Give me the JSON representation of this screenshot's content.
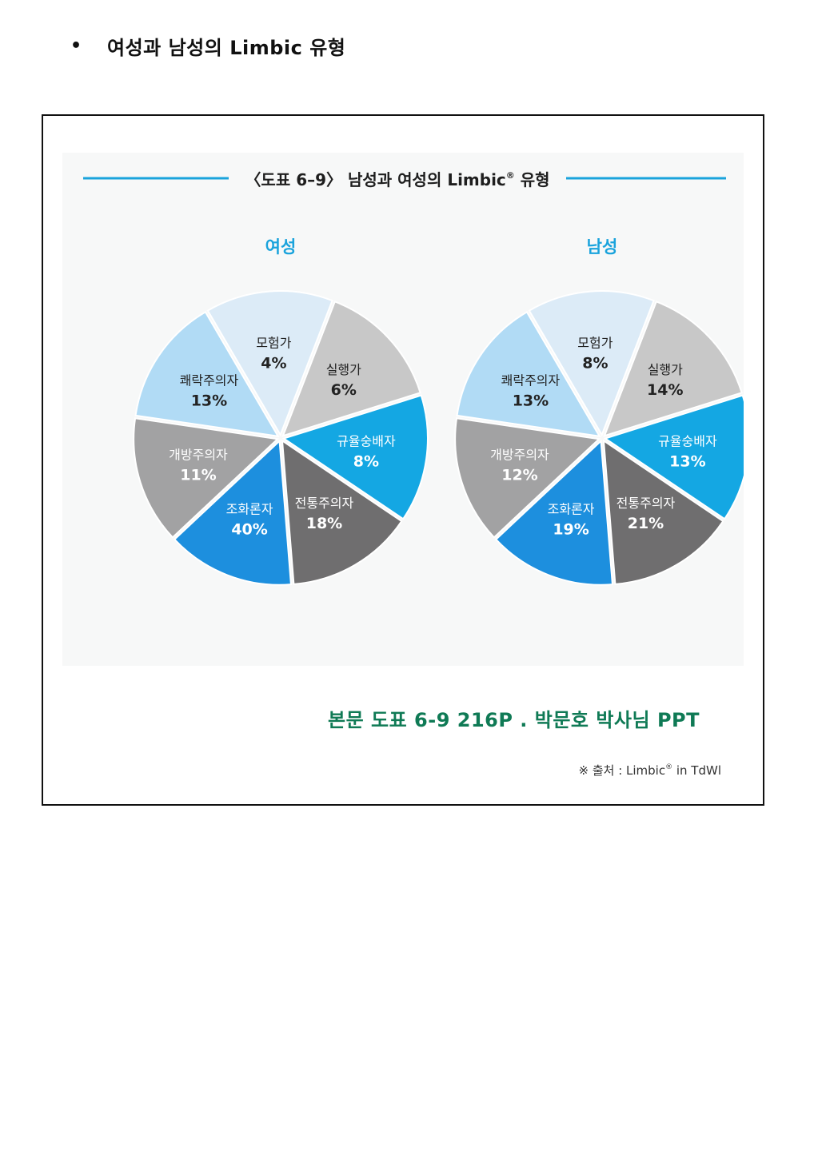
{
  "page": {
    "bullet": "•",
    "heading": "여성과 남성의 Limbic 유형",
    "caption": "본문 도표 6-9 216P  . 박문호 박사님 PPT"
  },
  "figure": {
    "title_main": "〈도표 6–9〉 남성과 여성의 Limbic",
    "title_reg": "®",
    "title_tail": " 유형",
    "source_prefix": "※ 출처 : Limbic",
    "source_reg": "®",
    "source_tail": " in TdWl",
    "rule_color": "#1aa3dc"
  },
  "chart_data": [
    {
      "type": "pie",
      "title": "여성",
      "slices": [
        {
          "label": "모험가",
          "value": 4,
          "display": "4%",
          "color": "#dcebf7",
          "text": "#222222"
        },
        {
          "label": "실행가",
          "value": 6,
          "display": "6%",
          "color": "#c8c8c8",
          "text": "#222222"
        },
        {
          "label": "규율숭배자",
          "value": 8,
          "display": "8%",
          "color": "#14a7e3",
          "text": "#ffffff"
        },
        {
          "label": "전통주의자",
          "value": 18,
          "display": "18%",
          "color": "#6f6e6f",
          "text": "#ffffff"
        },
        {
          "label": "조화론자",
          "value": 40,
          "display": "40%",
          "color": "#1d8fde",
          "text": "#ffffff"
        },
        {
          "label": "개방주의자",
          "value": 11,
          "display": "11%",
          "color": "#a2a2a3",
          "text": "#ffffff"
        },
        {
          "label": "쾌락주의자",
          "value": 13,
          "display": "13%",
          "color": "#b1dbf5",
          "text": "#222222"
        }
      ]
    },
    {
      "type": "pie",
      "title": "남성",
      "slices": [
        {
          "label": "모험가",
          "value": 8,
          "display": "8%",
          "color": "#dcebf7",
          "text": "#222222"
        },
        {
          "label": "실행가",
          "value": 14,
          "display": "14%",
          "color": "#c8c8c8",
          "text": "#222222"
        },
        {
          "label": "규율숭배자",
          "value": 13,
          "display": "13%",
          "color": "#14a7e3",
          "text": "#ffffff"
        },
        {
          "label": "전통주의자",
          "value": 21,
          "display": "21%",
          "color": "#6f6e6f",
          "text": "#ffffff"
        },
        {
          "label": "조화론자",
          "value": 19,
          "display": "19%",
          "color": "#1d8fde",
          "text": "#ffffff"
        },
        {
          "label": "개방주의자",
          "value": 12,
          "display": "12%",
          "color": "#a2a2a3",
          "text": "#ffffff"
        },
        {
          "label": "쾌락주의자",
          "value": 13,
          "display": "13%",
          "color": "#b1dbf5",
          "text": "#222222"
        }
      ]
    }
  ]
}
